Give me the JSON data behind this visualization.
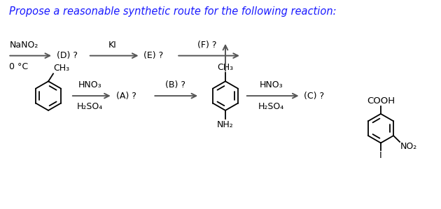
{
  "title": "Propose a reasonable synthetic route for the following reaction:",
  "title_fontsize": 10.5,
  "title_color": "#1a1aff",
  "bg_color": "#ffffff",
  "text_color": "#000000",
  "arrow_color": "#555555",
  "sc": "#000000",
  "labels": {
    "A": "(A) ?",
    "B": "(B) ?",
    "C": "(C) ?",
    "D": "(D) ?",
    "E": "(E) ?",
    "F": "(F) ?"
  },
  "reagents": {
    "step1_top": "HNO₃",
    "step1_bot": "H₂SO₄",
    "step3_top": "HNO₃",
    "step3_bot": "H₂SO₄",
    "step4_top": "NaNO₂",
    "step4_bot": "0 °C",
    "step5": "KI"
  },
  "subs": {
    "ch3": "CH₃",
    "nh2": "NH₂",
    "cooh": "COOH",
    "no2": "NO₂",
    "I": "I"
  }
}
